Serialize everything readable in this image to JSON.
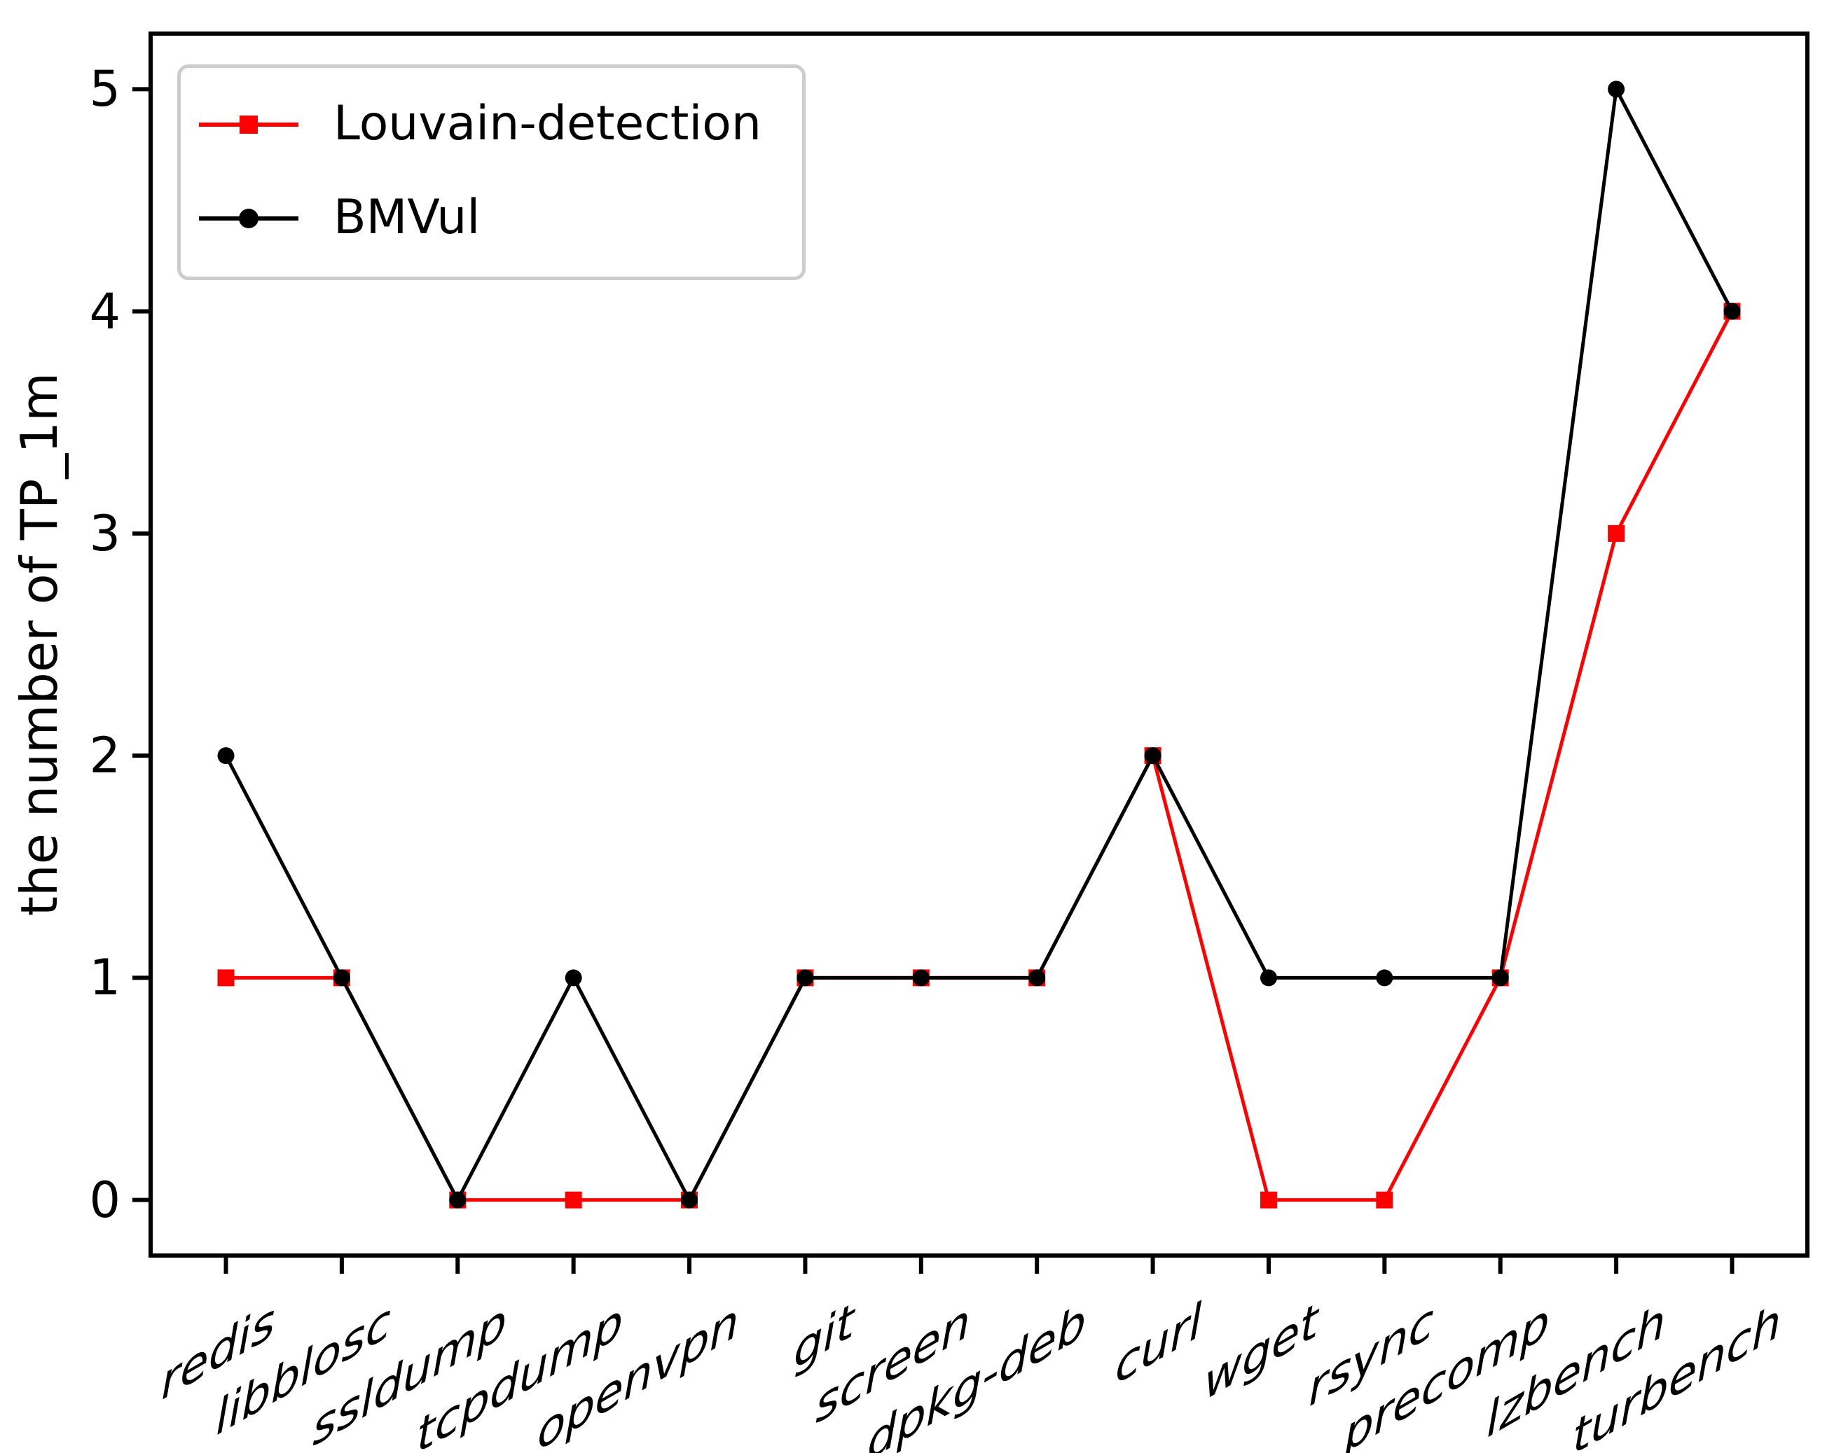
{
  "figure": {
    "background": "#ffffff",
    "title": ""
  },
  "chart_data": {
    "type": "line",
    "title": "",
    "xlabel": "",
    "ylabel": "the number of TP_1m",
    "categories": [
      "redis",
      "libblosc",
      "ssldump",
      "tcpdump",
      "openvpn",
      "git",
      "screen",
      "dpkg-deb",
      "curl",
      "wget",
      "rsync",
      "precomp",
      "lzbench",
      "turbench"
    ],
    "series": [
      {
        "name": "Louvain-detection",
        "color": "#ff0000",
        "marker": "square",
        "values": [
          1,
          1,
          0,
          0,
          0,
          1,
          1,
          1,
          2,
          0,
          0,
          1,
          3,
          4
        ]
      },
      {
        "name": "BMVul",
        "color": "#000000",
        "marker": "circle",
        "values": [
          2,
          1,
          0,
          1,
          0,
          1,
          1,
          1,
          2,
          1,
          1,
          1,
          5,
          4
        ]
      }
    ],
    "yticks": [
      0,
      1,
      2,
      3,
      4,
      5
    ],
    "ylim": [
      -0.25,
      5.25
    ],
    "grid": false,
    "legend_position": "upper left"
  },
  "legend": {
    "entries": [
      {
        "label": "Louvain-detection"
      },
      {
        "label": "BMVul"
      }
    ]
  }
}
